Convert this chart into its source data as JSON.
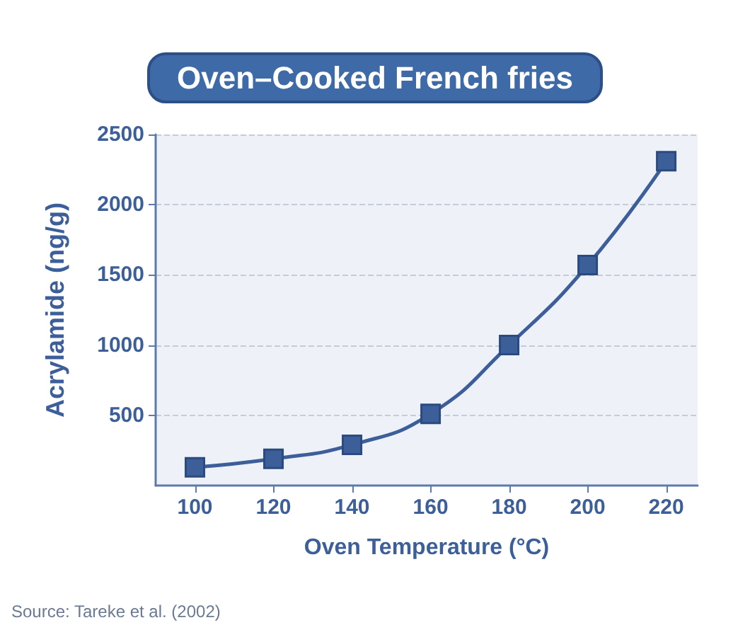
{
  "chart_data": {
    "type": "line",
    "title": "Oven–Cooked French fries",
    "xlabel": "Oven Temperature (°C)",
    "ylabel": "Acrylamide (ng/g)",
    "x": [
      100,
      120,
      140,
      160,
      180,
      200,
      220
    ],
    "series": [
      {
        "color": "#3d5f99",
        "values": [
          130,
          190,
          290,
          510,
          1000,
          1570,
          2310
        ]
      }
    ],
    "xlim": [
      90,
      228
    ],
    "xticks": [
      100,
      120,
      140,
      160,
      180,
      200,
      220
    ],
    "ylim": [
      0,
      2500
    ],
    "yticks": [
      500,
      1000,
      1500,
      2000,
      2500
    ],
    "grid": "y",
    "marker": "square",
    "line_style": "solid",
    "annotations": [
      "Source: Tareke et al. (2002)"
    ]
  }
}
